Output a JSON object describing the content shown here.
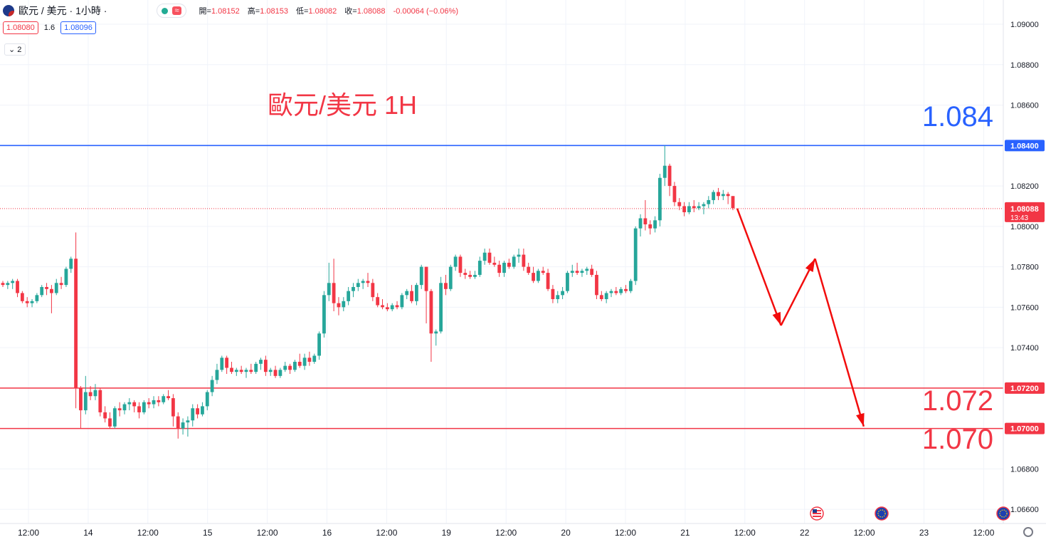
{
  "header": {
    "symbol": "歐元 / 美元 · 1小時 ·",
    "wave_icon": "≈",
    "ohlc": {
      "open_label": "開=",
      "open": "1.08152",
      "high_label": "高=",
      "high": "1.08153",
      "low_label": "低=",
      "low": "1.08082",
      "close_label": "收=",
      "close": "1.08088",
      "change": "-0.00064 (−0.06%)"
    },
    "bid": "1.08080",
    "spread": "1.6",
    "ask": "1.08096",
    "indicators_count": "2",
    "collapse_icon": "chevron-down-icon"
  },
  "annotation_title": "歐元/美元 1H",
  "levels": {
    "upper_label": "1.084",
    "lower1_label": "1.072",
    "lower2_label": "1.070"
  },
  "price_axis": {
    "ticks": [
      "1.09000",
      "1.08800",
      "1.08600",
      "1.08200",
      "1.08000",
      "1.07800",
      "1.07600",
      "1.07400",
      "1.06800",
      "1.06600"
    ],
    "tags": [
      {
        "label": "1.08400",
        "value": 1.084,
        "color": "#2962ff"
      },
      {
        "label": "1.07200",
        "value": 1.072,
        "color": "#f23645"
      },
      {
        "label": "1.07000",
        "value": 1.07,
        "color": "#f23645"
      }
    ],
    "current_price": "1.08088",
    "countdown": "13:43"
  },
  "time_axis": {
    "labels": [
      "12:00",
      "14",
      "12:00",
      "15",
      "12:00",
      "16",
      "12:00",
      "19",
      "12:00",
      "20",
      "12:00",
      "21",
      "12:00",
      "22",
      "12:00",
      "23",
      "12:00"
    ]
  },
  "colors": {
    "up": "#26a69a",
    "down": "#f23645",
    "blue": "#2962ff",
    "red": "#f23645",
    "grid": "#f0f3fa"
  },
  "chart_data": {
    "type": "candlestick",
    "title": "歐元/美元 1H",
    "ylim": [
      1.0653,
      1.0912
    ],
    "current_price": 1.08088,
    "horizontal_lines": [
      1.084,
      1.072,
      1.07
    ],
    "candles": [
      {
        "o": 1.0772,
        "h": 1.0773,
        "l": 1.077,
        "c": 1.0771
      },
      {
        "o": 1.0771,
        "h": 1.0773,
        "l": 1.0769,
        "c": 1.0772
      },
      {
        "o": 1.0772,
        "h": 1.0774,
        "l": 1.0769,
        "c": 1.0773
      },
      {
        "o": 1.0773,
        "h": 1.0774,
        "l": 1.0765,
        "c": 1.0767
      },
      {
        "o": 1.0767,
        "h": 1.0768,
        "l": 1.0762,
        "c": 1.0763
      },
      {
        "o": 1.0763,
        "h": 1.0765,
        "l": 1.076,
        "c": 1.0762
      },
      {
        "o": 1.0762,
        "h": 1.0764,
        "l": 1.076,
        "c": 1.0763
      },
      {
        "o": 1.0763,
        "h": 1.0767,
        "l": 1.0762,
        "c": 1.0766
      },
      {
        "o": 1.0766,
        "h": 1.0771,
        "l": 1.0765,
        "c": 1.077
      },
      {
        "o": 1.077,
        "h": 1.0772,
        "l": 1.0766,
        "c": 1.0769
      },
      {
        "o": 1.0769,
        "h": 1.0771,
        "l": 1.0757,
        "c": 1.0767
      },
      {
        "o": 1.0767,
        "h": 1.0774,
        "l": 1.0766,
        "c": 1.0772
      },
      {
        "o": 1.0772,
        "h": 1.0775,
        "l": 1.0769,
        "c": 1.0771
      },
      {
        "o": 1.0771,
        "h": 1.078,
        "l": 1.077,
        "c": 1.0779
      },
      {
        "o": 1.0779,
        "h": 1.0785,
        "l": 1.0777,
        "c": 1.0784
      },
      {
        "o": 1.0784,
        "h": 1.0797,
        "l": 1.071,
        "c": 1.072
      },
      {
        "o": 1.072,
        "h": 1.0721,
        "l": 1.07,
        "c": 1.0709
      },
      {
        "o": 1.0709,
        "h": 1.0726,
        "l": 1.0707,
        "c": 1.0718
      },
      {
        "o": 1.0718,
        "h": 1.0721,
        "l": 1.0714,
        "c": 1.0716
      },
      {
        "o": 1.0716,
        "h": 1.0722,
        "l": 1.0714,
        "c": 1.0719
      },
      {
        "o": 1.0719,
        "h": 1.072,
        "l": 1.0706,
        "c": 1.0708
      },
      {
        "o": 1.0708,
        "h": 1.0711,
        "l": 1.0703,
        "c": 1.0705
      },
      {
        "o": 1.0705,
        "h": 1.0708,
        "l": 1.07,
        "c": 1.0701
      },
      {
        "o": 1.0701,
        "h": 1.0711,
        "l": 1.07,
        "c": 1.071
      },
      {
        "o": 1.071,
        "h": 1.0713,
        "l": 1.0706,
        "c": 1.0709
      },
      {
        "o": 1.0709,
        "h": 1.0713,
        "l": 1.0707,
        "c": 1.0712
      },
      {
        "o": 1.0712,
        "h": 1.0715,
        "l": 1.0709,
        "c": 1.0713
      },
      {
        "o": 1.0713,
        "h": 1.0714,
        "l": 1.0708,
        "c": 1.0711
      },
      {
        "o": 1.0711,
        "h": 1.0713,
        "l": 1.0705,
        "c": 1.0708
      },
      {
        "o": 1.0708,
        "h": 1.0714,
        "l": 1.0707,
        "c": 1.0713
      },
      {
        "o": 1.0713,
        "h": 1.0715,
        "l": 1.071,
        "c": 1.0712
      },
      {
        "o": 1.0712,
        "h": 1.0716,
        "l": 1.071,
        "c": 1.0714
      },
      {
        "o": 1.0714,
        "h": 1.0716,
        "l": 1.0711,
        "c": 1.0713
      },
      {
        "o": 1.0713,
        "h": 1.0717,
        "l": 1.0712,
        "c": 1.0716
      },
      {
        "o": 1.0716,
        "h": 1.0719,
        "l": 1.0714,
        "c": 1.0715
      },
      {
        "o": 1.0715,
        "h": 1.0717,
        "l": 1.0701,
        "c": 1.0706
      },
      {
        "o": 1.0706,
        "h": 1.0708,
        "l": 1.0695,
        "c": 1.07
      },
      {
        "o": 1.07,
        "h": 1.0705,
        "l": 1.0697,
        "c": 1.0703
      },
      {
        "o": 1.0703,
        "h": 1.0706,
        "l": 1.0696,
        "c": 1.0704
      },
      {
        "o": 1.0704,
        "h": 1.0712,
        "l": 1.0701,
        "c": 1.071
      },
      {
        "o": 1.071,
        "h": 1.0712,
        "l": 1.0705,
        "c": 1.0707
      },
      {
        "o": 1.0707,
        "h": 1.0713,
        "l": 1.0706,
        "c": 1.0711
      },
      {
        "o": 1.0711,
        "h": 1.0719,
        "l": 1.0709,
        "c": 1.0718
      },
      {
        "o": 1.0718,
        "h": 1.0726,
        "l": 1.0716,
        "c": 1.0724
      },
      {
        "o": 1.0724,
        "h": 1.0732,
        "l": 1.0722,
        "c": 1.0729
      },
      {
        "o": 1.0729,
        "h": 1.0736,
        "l": 1.0728,
        "c": 1.0735
      },
      {
        "o": 1.0735,
        "h": 1.0736,
        "l": 1.0727,
        "c": 1.073
      },
      {
        "o": 1.073,
        "h": 1.0733,
        "l": 1.0727,
        "c": 1.0728
      },
      {
        "o": 1.0728,
        "h": 1.073,
        "l": 1.0726,
        "c": 1.0729
      },
      {
        "o": 1.0729,
        "h": 1.0731,
        "l": 1.0727,
        "c": 1.0728
      },
      {
        "o": 1.0728,
        "h": 1.073,
        "l": 1.0725,
        "c": 1.0729
      },
      {
        "o": 1.0729,
        "h": 1.0732,
        "l": 1.0727,
        "c": 1.0728
      },
      {
        "o": 1.0728,
        "h": 1.0733,
        "l": 1.0727,
        "c": 1.0732
      },
      {
        "o": 1.0732,
        "h": 1.0735,
        "l": 1.0729,
        "c": 1.0734
      },
      {
        "o": 1.0734,
        "h": 1.0736,
        "l": 1.0726,
        "c": 1.0728
      },
      {
        "o": 1.0728,
        "h": 1.073,
        "l": 1.0726,
        "c": 1.0729
      },
      {
        "o": 1.0729,
        "h": 1.0731,
        "l": 1.0725,
        "c": 1.0726
      },
      {
        "o": 1.0726,
        "h": 1.073,
        "l": 1.0725,
        "c": 1.0729
      },
      {
        "o": 1.0729,
        "h": 1.0733,
        "l": 1.0728,
        "c": 1.0731
      },
      {
        "o": 1.0731,
        "h": 1.0732,
        "l": 1.0727,
        "c": 1.0729
      },
      {
        "o": 1.0729,
        "h": 1.0734,
        "l": 1.0728,
        "c": 1.0733
      },
      {
        "o": 1.0733,
        "h": 1.0737,
        "l": 1.073,
        "c": 1.0731
      },
      {
        "o": 1.0731,
        "h": 1.0737,
        "l": 1.0729,
        "c": 1.0735
      },
      {
        "o": 1.0735,
        "h": 1.0738,
        "l": 1.0731,
        "c": 1.0733
      },
      {
        "o": 1.0733,
        "h": 1.0737,
        "l": 1.0732,
        "c": 1.0736
      },
      {
        "o": 1.0736,
        "h": 1.0748,
        "l": 1.0734,
        "c": 1.0747
      },
      {
        "o": 1.0747,
        "h": 1.0768,
        "l": 1.0745,
        "c": 1.0766
      },
      {
        "o": 1.0766,
        "h": 1.0782,
        "l": 1.0763,
        "c": 1.0772
      },
      {
        "o": 1.0772,
        "h": 1.0784,
        "l": 1.0758,
        "c": 1.0762
      },
      {
        "o": 1.0762,
        "h": 1.0765,
        "l": 1.0756,
        "c": 1.076
      },
      {
        "o": 1.076,
        "h": 1.0765,
        "l": 1.0758,
        "c": 1.0763
      },
      {
        "o": 1.0763,
        "h": 1.077,
        "l": 1.0761,
        "c": 1.0768
      },
      {
        "o": 1.0768,
        "h": 1.0772,
        "l": 1.0765,
        "c": 1.077
      },
      {
        "o": 1.077,
        "h": 1.0774,
        "l": 1.0768,
        "c": 1.0772
      },
      {
        "o": 1.0772,
        "h": 1.0774,
        "l": 1.0769,
        "c": 1.0773
      },
      {
        "o": 1.0773,
        "h": 1.0777,
        "l": 1.077,
        "c": 1.0772
      },
      {
        "o": 1.0772,
        "h": 1.0774,
        "l": 1.0763,
        "c": 1.0765
      },
      {
        "o": 1.0765,
        "h": 1.0767,
        "l": 1.076,
        "c": 1.0761
      },
      {
        "o": 1.0761,
        "h": 1.0764,
        "l": 1.0759,
        "c": 1.076
      },
      {
        "o": 1.076,
        "h": 1.0762,
        "l": 1.0758,
        "c": 1.0759
      },
      {
        "o": 1.0759,
        "h": 1.0762,
        "l": 1.0758,
        "c": 1.0761
      },
      {
        "o": 1.0761,
        "h": 1.0763,
        "l": 1.0759,
        "c": 1.076
      },
      {
        "o": 1.076,
        "h": 1.0767,
        "l": 1.0759,
        "c": 1.0766
      },
      {
        "o": 1.0766,
        "h": 1.0769,
        "l": 1.0764,
        "c": 1.0768
      },
      {
        "o": 1.0768,
        "h": 1.0771,
        "l": 1.0762,
        "c": 1.0763
      },
      {
        "o": 1.0763,
        "h": 1.0772,
        "l": 1.0761,
        "c": 1.0771
      },
      {
        "o": 1.0771,
        "h": 1.0781,
        "l": 1.0769,
        "c": 1.078
      },
      {
        "o": 1.078,
        "h": 1.078,
        "l": 1.0752,
        "c": 1.0768
      },
      {
        "o": 1.0768,
        "h": 1.0769,
        "l": 1.0733,
        "c": 1.0747
      },
      {
        "o": 1.0747,
        "h": 1.0749,
        "l": 1.0741,
        "c": 1.0748
      },
      {
        "o": 1.0748,
        "h": 1.0775,
        "l": 1.0747,
        "c": 1.0772
      },
      {
        "o": 1.0772,
        "h": 1.0776,
        "l": 1.0766,
        "c": 1.0769
      },
      {
        "o": 1.0769,
        "h": 1.0781,
        "l": 1.0768,
        "c": 1.078
      },
      {
        "o": 1.078,
        "h": 1.0786,
        "l": 1.0778,
        "c": 1.0785
      },
      {
        "o": 1.0785,
        "h": 1.0786,
        "l": 1.0775,
        "c": 1.0777
      },
      {
        "o": 1.0777,
        "h": 1.0779,
        "l": 1.0774,
        "c": 1.0776
      },
      {
        "o": 1.0776,
        "h": 1.0778,
        "l": 1.0774,
        "c": 1.0775
      },
      {
        "o": 1.0775,
        "h": 1.0778,
        "l": 1.0774,
        "c": 1.0776
      },
      {
        "o": 1.0776,
        "h": 1.0785,
        "l": 1.0775,
        "c": 1.0783
      },
      {
        "o": 1.0783,
        "h": 1.0789,
        "l": 1.0781,
        "c": 1.0787
      },
      {
        "o": 1.0787,
        "h": 1.0789,
        "l": 1.0781,
        "c": 1.0782
      },
      {
        "o": 1.0782,
        "h": 1.0785,
        "l": 1.078,
        "c": 1.0781
      },
      {
        "o": 1.0781,
        "h": 1.0783,
        "l": 1.0775,
        "c": 1.0777
      },
      {
        "o": 1.0777,
        "h": 1.0783,
        "l": 1.0775,
        "c": 1.0782
      },
      {
        "o": 1.0782,
        "h": 1.0784,
        "l": 1.0779,
        "c": 1.078
      },
      {
        "o": 1.078,
        "h": 1.0786,
        "l": 1.0779,
        "c": 1.0785
      },
      {
        "o": 1.0785,
        "h": 1.0789,
        "l": 1.0782,
        "c": 1.0786
      },
      {
        "o": 1.0786,
        "h": 1.0789,
        "l": 1.0778,
        "c": 1.078
      },
      {
        "o": 1.078,
        "h": 1.0782,
        "l": 1.0776,
        "c": 1.0777
      },
      {
        "o": 1.0777,
        "h": 1.078,
        "l": 1.0772,
        "c": 1.0773
      },
      {
        "o": 1.0773,
        "h": 1.0779,
        "l": 1.0772,
        "c": 1.0778
      },
      {
        "o": 1.0778,
        "h": 1.078,
        "l": 1.0776,
        "c": 1.0777
      },
      {
        "o": 1.0777,
        "h": 1.0779,
        "l": 1.0768,
        "c": 1.0769
      },
      {
        "o": 1.0769,
        "h": 1.0771,
        "l": 1.0762,
        "c": 1.0764
      },
      {
        "o": 1.0764,
        "h": 1.0768,
        "l": 1.0762,
        "c": 1.0766
      },
      {
        "o": 1.0766,
        "h": 1.077,
        "l": 1.0764,
        "c": 1.0768
      },
      {
        "o": 1.0768,
        "h": 1.0778,
        "l": 1.0767,
        "c": 1.0777
      },
      {
        "o": 1.0777,
        "h": 1.0781,
        "l": 1.0775,
        "c": 1.0778
      },
      {
        "o": 1.0778,
        "h": 1.0782,
        "l": 1.0776,
        "c": 1.0777
      },
      {
        "o": 1.0777,
        "h": 1.0779,
        "l": 1.0775,
        "c": 1.0778
      },
      {
        "o": 1.0778,
        "h": 1.078,
        "l": 1.0776,
        "c": 1.0779
      },
      {
        "o": 1.0779,
        "h": 1.0781,
        "l": 1.0775,
        "c": 1.0776
      },
      {
        "o": 1.0776,
        "h": 1.0778,
        "l": 1.0764,
        "c": 1.0766
      },
      {
        "o": 1.0766,
        "h": 1.0768,
        "l": 1.0763,
        "c": 1.0764
      },
      {
        "o": 1.0764,
        "h": 1.0768,
        "l": 1.0762,
        "c": 1.0767
      },
      {
        "o": 1.0767,
        "h": 1.0769,
        "l": 1.0765,
        "c": 1.0768
      },
      {
        "o": 1.0768,
        "h": 1.077,
        "l": 1.0766,
        "c": 1.0767
      },
      {
        "o": 1.0767,
        "h": 1.077,
        "l": 1.0766,
        "c": 1.0769
      },
      {
        "o": 1.0769,
        "h": 1.0771,
        "l": 1.0767,
        "c": 1.0768
      },
      {
        "o": 1.0768,
        "h": 1.0774,
        "l": 1.0767,
        "c": 1.0773
      },
      {
        "o": 1.0773,
        "h": 1.08,
        "l": 1.0771,
        "c": 1.0799
      },
      {
        "o": 1.0799,
        "h": 1.0806,
        "l": 1.0795,
        "c": 1.0804
      },
      {
        "o": 1.0804,
        "h": 1.0813,
        "l": 1.0798,
        "c": 1.0801
      },
      {
        "o": 1.0801,
        "h": 1.0803,
        "l": 1.0796,
        "c": 1.0799
      },
      {
        "o": 1.0799,
        "h": 1.0805,
        "l": 1.0797,
        "c": 1.0803
      },
      {
        "o": 1.0803,
        "h": 1.0826,
        "l": 1.08,
        "c": 1.0824
      },
      {
        "o": 1.0824,
        "h": 1.084,
        "l": 1.082,
        "c": 1.083
      },
      {
        "o": 1.083,
        "h": 1.0831,
        "l": 1.0815,
        "c": 1.082
      },
      {
        "o": 1.082,
        "h": 1.0822,
        "l": 1.081,
        "c": 1.0812
      },
      {
        "o": 1.0812,
        "h": 1.0814,
        "l": 1.0808,
        "c": 1.081
      },
      {
        "o": 1.081,
        "h": 1.0812,
        "l": 1.0805,
        "c": 1.0807
      },
      {
        "o": 1.0807,
        "h": 1.0812,
        "l": 1.0806,
        "c": 1.081
      },
      {
        "o": 1.081,
        "h": 1.0813,
        "l": 1.0807,
        "c": 1.0809
      },
      {
        "o": 1.0809,
        "h": 1.0812,
        "l": 1.0808,
        "c": 1.081
      },
      {
        "o": 1.081,
        "h": 1.0812,
        "l": 1.0806,
        "c": 1.0811
      },
      {
        "o": 1.0811,
        "h": 1.0815,
        "l": 1.0809,
        "c": 1.0813
      },
      {
        "o": 1.0813,
        "h": 1.0818,
        "l": 1.0811,
        "c": 1.0817
      },
      {
        "o": 1.0817,
        "h": 1.0819,
        "l": 1.0813,
        "c": 1.0815
      },
      {
        "o": 1.0815,
        "h": 1.0818,
        "l": 1.0813,
        "c": 1.0816
      },
      {
        "o": 1.0816,
        "h": 1.0817,
        "l": 1.0811,
        "c": 1.0815
      },
      {
        "o": 1.0815,
        "h": 1.0815,
        "l": 1.0808,
        "c": 1.0809
      }
    ],
    "projection_path": [
      [
        1.08088,
        0
      ],
      [
        1.0751,
        9
      ],
      [
        1.0784,
        16
      ],
      [
        1.0701,
        26
      ]
    ]
  }
}
